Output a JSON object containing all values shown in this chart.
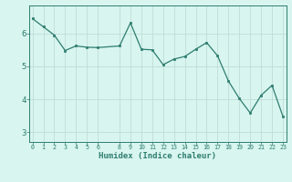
{
  "x": [
    0,
    1,
    2,
    3,
    4,
    5,
    6,
    8,
    9,
    10,
    11,
    12,
    13,
    14,
    15,
    16,
    17,
    18,
    19,
    20,
    21,
    22,
    23
  ],
  "y": [
    6.45,
    6.2,
    5.95,
    5.48,
    5.62,
    5.58,
    5.57,
    5.62,
    6.32,
    5.52,
    5.5,
    5.05,
    5.22,
    5.3,
    5.52,
    5.72,
    5.32,
    4.55,
    4.02,
    3.58,
    4.12,
    4.42,
    3.48
  ],
  "line_color": "#2e7d6e",
  "marker_color": "#2e7d6e",
  "bg_color": "#d8f5f0",
  "grid_color": "#c0ddd8",
  "axis_color": "#2e7d6e",
  "tick_color": "#4a9080",
  "xlabel": "Humidex (Indice chaleur)",
  "xticks": [
    0,
    1,
    2,
    3,
    4,
    5,
    6,
    8,
    9,
    10,
    11,
    12,
    13,
    14,
    15,
    16,
    17,
    18,
    19,
    20,
    21,
    22,
    23
  ],
  "yticks": [
    3,
    4,
    5,
    6
  ],
  "ylim": [
    2.7,
    6.85
  ],
  "xlim": [
    -0.3,
    23.3
  ]
}
